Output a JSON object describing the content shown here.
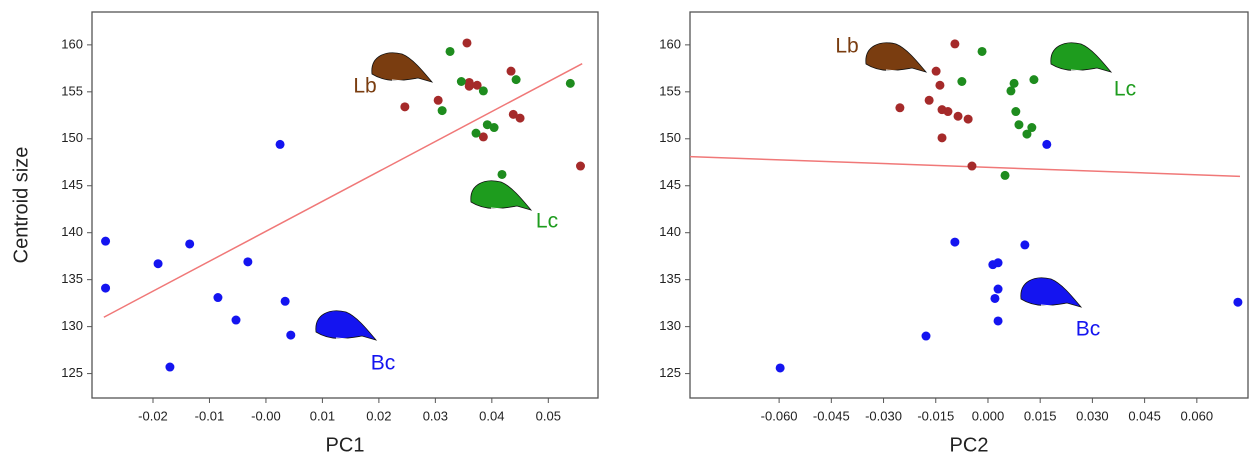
{
  "chart_data": [
    {
      "type": "scatter",
      "xlabel": "PC1",
      "ylabel": "Centroid size",
      "xlim": [
        -0.0308,
        0.0588
      ],
      "ylim": [
        122.4,
        163.5
      ],
      "xticks": [
        -0.02,
        -0.01,
        {
          "value": 0,
          "label": "-0.00"
        },
        0.01,
        0.02,
        0.03,
        0.04,
        0.05
      ],
      "yticks": [
        125,
        130,
        135,
        140,
        145,
        150,
        155,
        160
      ],
      "series": [
        {
          "color": "#1414f0",
          "x": [
            -0.0284,
            -0.0284,
            -0.0191,
            -0.0135,
            -0.017,
            -0.0085,
            -0.0053,
            -0.0032,
            0.0025,
            0.0034,
            0.0044
          ],
          "values": [
            139.1,
            134.1,
            136.7,
            138.8,
            125.7,
            133.1,
            130.7,
            136.9,
            149.4,
            132.7,
            129.1
          ]
        },
        {
          "color": "#a52a2a",
          "x": [
            0.0246,
            0.0305,
            0.0356,
            0.036,
            0.036,
            0.0374,
            0.0385,
            0.0434,
            0.0438,
            0.045,
            0.0557
          ],
          "values": [
            153.4,
            154.1,
            160.2,
            156.0,
            155.6,
            155.7,
            150.2,
            157.2,
            152.6,
            152.2,
            147.1
          ]
        },
        {
          "color": "#1e8c1e",
          "x": [
            0.0326,
            0.0346,
            0.0312,
            0.0385,
            0.0372,
            0.0392,
            0.0404,
            0.0443,
            0.0418,
            0.0539
          ],
          "values": [
            159.3,
            156.1,
            153.0,
            155.1,
            150.6,
            151.5,
            151.2,
            156.3,
            146.2,
            155.9
          ]
        }
      ],
      "trend": {
        "color": "#f07878",
        "x": [
          -0.0287,
          0.056
        ],
        "values": [
          131.0,
          158.0
        ]
      },
      "annotations": [
        {
          "text": "Lb",
          "color": "#7a3d10"
        },
        {
          "text": "Lc",
          "color": "#1e9c1e"
        },
        {
          "text": "Bc",
          "color": "#1414f0"
        }
      ]
    },
    {
      "type": "scatter",
      "xlabel": "PC2",
      "xlim": [
        -0.0856,
        0.0747
      ],
      "ylim": [
        122.4,
        163.5
      ],
      "xticks": [
        {
          "value": -0.06,
          "label": "-0.060"
        },
        -0.045,
        {
          "value": -0.03,
          "label": "-0.030"
        },
        -0.015,
        {
          "value": 0,
          "label": "0.000"
        },
        0.015,
        {
          "value": 0.03,
          "label": "0.030"
        },
        0.045,
        {
          "value": 0.06,
          "label": "0.060"
        }
      ],
      "yticks": [
        125,
        130,
        135,
        140,
        145,
        150,
        155,
        160
      ],
      "series": [
        {
          "color": "#1414f0",
          "x": [
            -0.0597,
            -0.0178,
            -0.0095,
            0.0014,
            0.0029,
            0.0029,
            0.002,
            0.0029,
            0.0106,
            0.0169,
            0.0718
          ],
          "values": [
            125.6,
            129.0,
            139.0,
            136.6,
            136.8,
            134.0,
            133.0,
            130.6,
            138.7,
            149.4,
            132.6
          ]
        },
        {
          "color": "#a52a2a",
          "x": [
            -0.0253,
            -0.0169,
            -0.0149,
            -0.0138,
            -0.0095,
            -0.0132,
            -0.0115,
            -0.0086,
            -0.0057,
            -0.0132,
            -0.0046
          ],
          "values": [
            153.3,
            154.1,
            157.2,
            155.7,
            160.1,
            153.1,
            152.9,
            152.4,
            152.1,
            150.1,
            147.1
          ]
        },
        {
          "color": "#1e8c1e",
          "x": [
            -0.0017,
            -0.0075,
            0.0075,
            0.0066,
            0.0132,
            0.008,
            0.0089,
            0.0126,
            0.0112,
            0.0049
          ],
          "values": [
            159.3,
            156.1,
            155.9,
            155.1,
            156.3,
            152.9,
            151.5,
            151.2,
            150.5,
            146.1
          ]
        }
      ],
      "trend": {
        "color": "#f07878",
        "x": [
          -0.0856,
          0.0724
        ],
        "values": [
          148.1,
          146.0
        ]
      },
      "annotations": [
        {
          "text": "Lb",
          "color": "#7a3d10"
        },
        {
          "text": "Lc",
          "color": "#1e9c1e"
        },
        {
          "text": "Bc",
          "color": "#1414f0"
        }
      ]
    }
  ]
}
